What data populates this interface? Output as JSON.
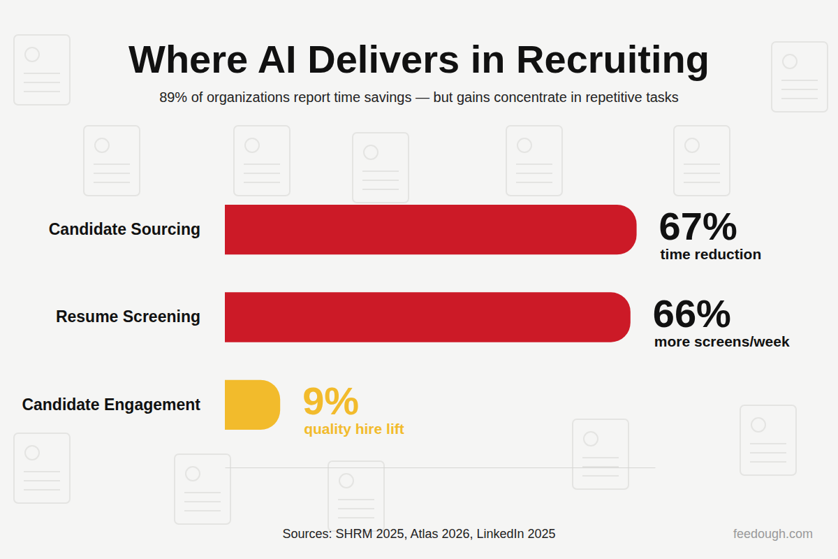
{
  "chart_data": {
    "type": "bar",
    "orientation": "horizontal",
    "title": "Where AI Delivers in Recruiting",
    "subtitle": "89% of organizations report time savings — but gains concentrate in repetitive tasks",
    "categories": [
      "Candidate Sourcing",
      "Resume Screening",
      "Candidate Engagement"
    ],
    "values": [
      67,
      66,
      9
    ],
    "value_labels": [
      "67%",
      "66%",
      "9%"
    ],
    "annotations": [
      "time reduction",
      "more screens/week",
      "quality hire lift"
    ],
    "colors": [
      "#cc1a27",
      "#cc1a27",
      "#f2bb2c"
    ],
    "xlim": [
      0,
      70
    ],
    "xticks": [],
    "grid": false,
    "data_labels": true,
    "tick_labels": false,
    "source": "Sources:  SHRM 2025, Atlas 2026, LinkedIn 2025",
    "credit": "feedough.com"
  }
}
